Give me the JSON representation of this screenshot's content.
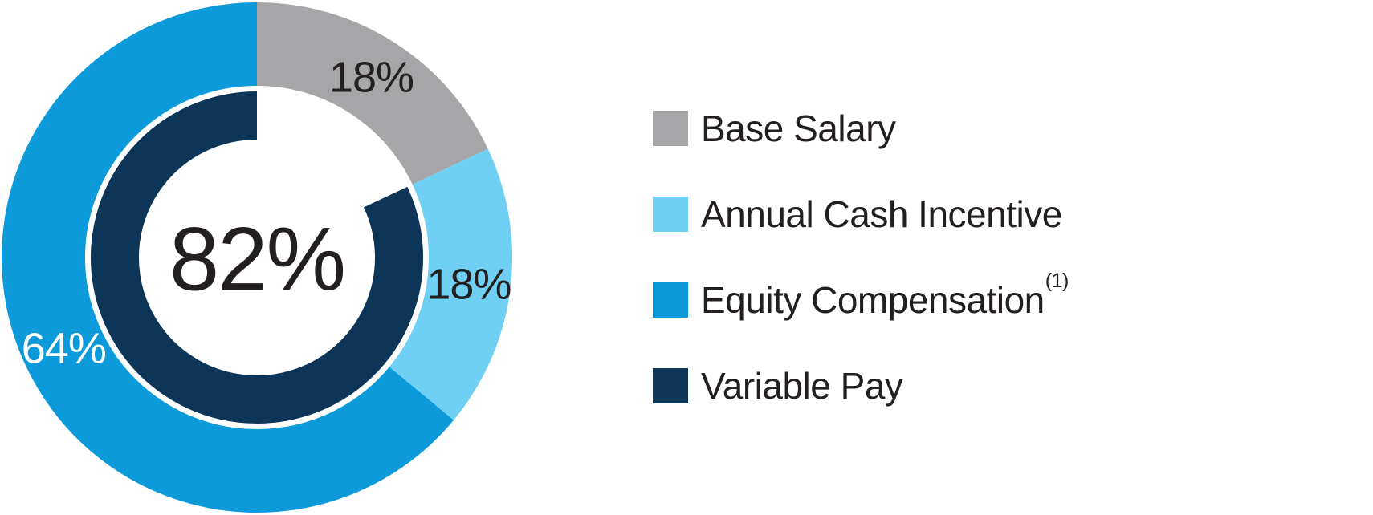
{
  "chart_data": {
    "type": "pie",
    "subtype": "double-ring-donut",
    "title": "",
    "center_label": "82%",
    "units": "percent",
    "direction": "clockwise",
    "start_angle_deg": 0,
    "outer_ring": {
      "segments": [
        {
          "name": "Base Salary",
          "value": 18,
          "label": "18%",
          "color": "#a6a6a8",
          "label_color": "#231f20"
        },
        {
          "name": "Annual Cash Incentive",
          "value": 18,
          "label": "18%",
          "color": "#6fd0f3",
          "label_color": "#231f20"
        },
        {
          "name": "Equity Compensation",
          "value": 64,
          "label": "64%",
          "color": "#0c9ada",
          "label_color": "#ffffff"
        }
      ]
    },
    "inner_ring": {
      "segments": [
        {
          "name": "Variable Pay",
          "value": 82,
          "label": "",
          "color": "#0d3557"
        }
      ],
      "gap_aligned_with": "Base Salary"
    }
  },
  "legend": {
    "items": [
      {
        "label": "Base Salary",
        "sup": "",
        "color": "#a6a6a8"
      },
      {
        "label": "Annual Cash Incentive",
        "sup": "",
        "color": "#6fd0f3"
      },
      {
        "label": "Equity Compensation",
        "sup": "(1)",
        "color": "#0c9ada"
      },
      {
        "label": "Variable Pay",
        "sup": "",
        "color": "#0d3557"
      }
    ]
  },
  "colors": {
    "background": "#ffffff",
    "text": "#231f20",
    "gray": "#a6a6a8",
    "light_blue": "#6fd0f3",
    "blue": "#0c9ada",
    "navy": "#0d3557"
  }
}
